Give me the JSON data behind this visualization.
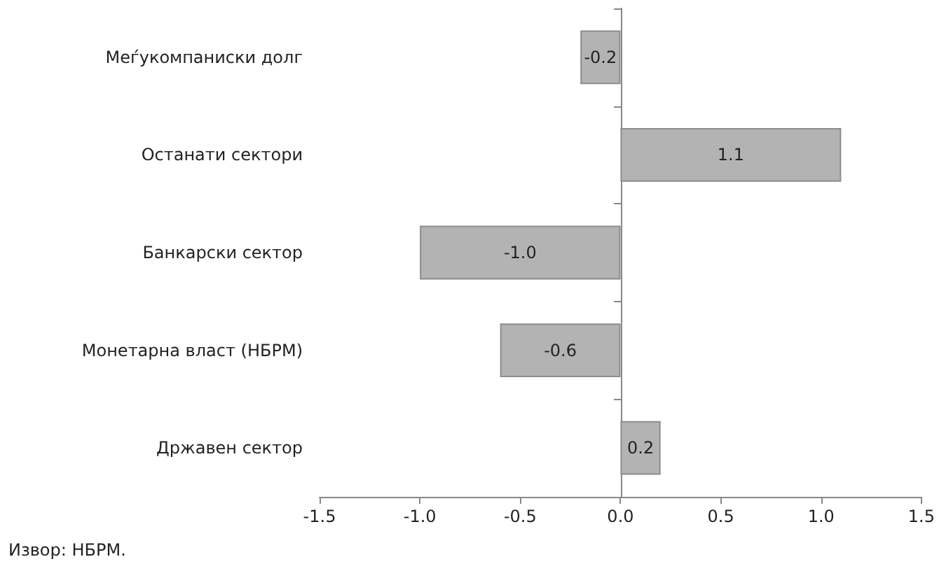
{
  "chart_data": {
    "type": "bar",
    "orientation": "horizontal",
    "categories": [
      "Меѓукомпаниски долг",
      "Останати сектори",
      "Банкарски сектор",
      "Монетарна власт (НБРМ)",
      "Државен сектор"
    ],
    "values": [
      -0.2,
      1.1,
      -1.0,
      -0.6,
      0.2
    ],
    "value_labels": [
      "-0.2",
      "1.1",
      "-1.0",
      "-0.6",
      "0.2"
    ],
    "color": "#b3b3b3",
    "xlim": [
      -1.5,
      1.5
    ],
    "xticks": [
      -1.5,
      {
        "value": -1,
        "label": "-1.0"
      },
      -0.5,
      {
        "value": 0,
        "label": "0.0"
      },
      0.5,
      {
        "value": 1,
        "label": "1.0"
      },
      1.5
    ],
    "annotations": [
      "Извор: НБРМ."
    ]
  }
}
